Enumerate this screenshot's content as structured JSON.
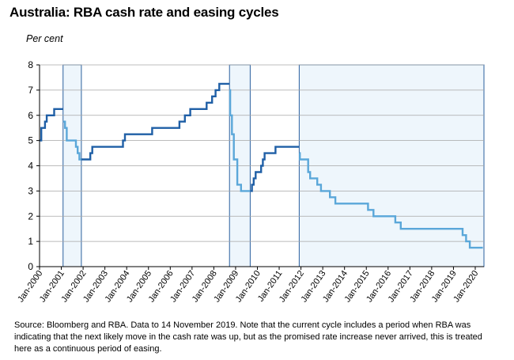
{
  "header": {
    "title": "Australia: RBA cash rate and easing cycles",
    "unit_label": "Per cent"
  },
  "source_note": {
    "line1": "Source: Bloomberg and RBA.  Data to 14 November 2019.  Note that the current cycle includes a period when RBA was",
    "line2": "indicating that the next likely move in the cash rate was up, but as the promised rate increase never arrived,  this is treated",
    "line3": "here as a continuous period of easing."
  },
  "chart_data": {
    "type": "line",
    "title": "Australia: RBA cash rate and easing cycles",
    "ylabel": "Per cent",
    "ylim": [
      0,
      8
    ],
    "yticks": [
      0,
      1,
      2,
      3,
      4,
      5,
      6,
      7,
      8
    ],
    "xlim": [
      2000,
      2020.4
    ],
    "xticks": [
      {
        "label": "Jan-2000",
        "x": 2000
      },
      {
        "label": "Jan-2001",
        "x": 2001
      },
      {
        "label": "Jan-2002",
        "x": 2002
      },
      {
        "label": "Jan-2003",
        "x": 2003
      },
      {
        "label": "Jan-2004",
        "x": 2004
      },
      {
        "label": "Jan-2005",
        "x": 2005
      },
      {
        "label": "Jan-2006",
        "x": 2006
      },
      {
        "label": "Jan-2007",
        "x": 2007
      },
      {
        "label": "Jan-2008",
        "x": 2008
      },
      {
        "label": "Jan-2009",
        "x": 2009
      },
      {
        "label": "Jan-2010",
        "x": 2010
      },
      {
        "label": "Jan-2011",
        "x": 2011
      },
      {
        "label": "Jan-2012",
        "x": 2012
      },
      {
        "label": "Jan-2013",
        "x": 2013
      },
      {
        "label": "Jan-2014",
        "x": 2014
      },
      {
        "label": "Jan-2015",
        "x": 2015
      },
      {
        "label": "Jan-2016",
        "x": 2016
      },
      {
        "label": "Jan-2017",
        "x": 2017
      },
      {
        "label": "Jan-2018",
        "x": 2018
      },
      {
        "label": "Jan-2019",
        "x": 2019
      },
      {
        "label": "Jan-2020",
        "x": 2020
      }
    ],
    "easing_cycles": [
      {
        "start": 2001.08,
        "end": 2001.92
      },
      {
        "start": 2008.72,
        "end": 2009.67
      },
      {
        "start": 2011.92,
        "end": 2020.4
      }
    ],
    "series": [
      {
        "name": "RBA cash rate",
        "color": "#1f5fa6",
        "points": [
          [
            2000.0,
            5.0
          ],
          [
            2000.08,
            5.5
          ],
          [
            2000.25,
            5.75
          ],
          [
            2000.33,
            6.0
          ],
          [
            2000.67,
            6.25
          ],
          [
            2001.08,
            6.25
          ]
        ]
      },
      {
        "name": "RBA cash rate (easing)",
        "color": "#5aa7d9",
        "points": [
          [
            2001.08,
            5.75
          ],
          [
            2001.17,
            5.5
          ],
          [
            2001.25,
            5.0
          ],
          [
            2001.67,
            4.75
          ],
          [
            2001.75,
            4.5
          ],
          [
            2001.83,
            4.25
          ],
          [
            2001.92,
            4.25
          ]
        ]
      },
      {
        "name": "RBA cash rate",
        "color": "#1f5fa6",
        "points": [
          [
            2001.92,
            4.25
          ],
          [
            2002.33,
            4.5
          ],
          [
            2002.42,
            4.75
          ],
          [
            2003.83,
            5.0
          ],
          [
            2003.92,
            5.25
          ],
          [
            2005.17,
            5.5
          ],
          [
            2006.42,
            5.75
          ],
          [
            2006.67,
            6.0
          ],
          [
            2006.92,
            6.25
          ],
          [
            2007.67,
            6.5
          ],
          [
            2007.92,
            6.75
          ],
          [
            2008.08,
            7.0
          ],
          [
            2008.25,
            7.25
          ],
          [
            2008.72,
            7.25
          ]
        ]
      },
      {
        "name": "RBA cash rate (easing)",
        "color": "#5aa7d9",
        "points": [
          [
            2008.72,
            7.0
          ],
          [
            2008.75,
            6.0
          ],
          [
            2008.83,
            5.25
          ],
          [
            2008.92,
            4.25
          ],
          [
            2009.08,
            3.25
          ],
          [
            2009.25,
            3.0
          ],
          [
            2009.67,
            3.0
          ]
        ]
      },
      {
        "name": "RBA cash rate",
        "color": "#1f5fa6",
        "points": [
          [
            2009.67,
            3.0
          ],
          [
            2009.75,
            3.25
          ],
          [
            2009.83,
            3.5
          ],
          [
            2009.92,
            3.75
          ],
          [
            2010.17,
            4.0
          ],
          [
            2010.25,
            4.25
          ],
          [
            2010.33,
            4.5
          ],
          [
            2010.83,
            4.75
          ],
          [
            2011.92,
            4.75
          ]
        ]
      },
      {
        "name": "RBA cash rate (easing)",
        "color": "#5aa7d9",
        "points": [
          [
            2011.92,
            4.5
          ],
          [
            2011.95,
            4.25
          ],
          [
            2012.33,
            3.75
          ],
          [
            2012.42,
            3.5
          ],
          [
            2012.75,
            3.25
          ],
          [
            2012.92,
            3.0
          ],
          [
            2013.33,
            2.75
          ],
          [
            2013.58,
            2.5
          ],
          [
            2015.08,
            2.25
          ],
          [
            2015.33,
            2.0
          ],
          [
            2016.33,
            1.75
          ],
          [
            2016.58,
            1.5
          ],
          [
            2019.42,
            1.25
          ],
          [
            2019.58,
            1.0
          ],
          [
            2019.75,
            0.75
          ],
          [
            2020.35,
            0.75
          ]
        ]
      }
    ]
  }
}
